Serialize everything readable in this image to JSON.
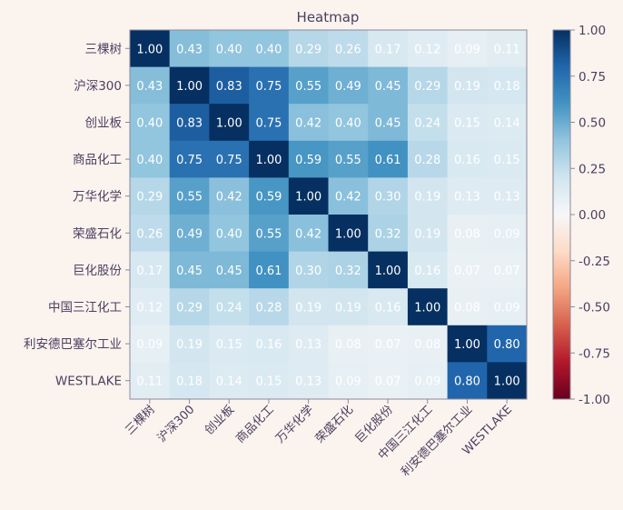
{
  "chart_data": {
    "type": "heatmap",
    "title": "Heatmap",
    "xlabel": "",
    "ylabel": "",
    "labels": [
      "三棵树",
      "沪深300",
      "创业板",
      "商品化工",
      "万华化学",
      "荣盛石化",
      "巨化股份",
      "中国三江化工",
      "利安德巴塞尔工业",
      "WESTLAKE"
    ],
    "values": [
      [
        1.0,
        0.43,
        0.4,
        0.4,
        0.29,
        0.26,
        0.17,
        0.12,
        0.09,
        0.11
      ],
      [
        0.43,
        1.0,
        0.83,
        0.75,
        0.55,
        0.49,
        0.45,
        0.29,
        0.19,
        0.18
      ],
      [
        0.4,
        0.83,
        1.0,
        0.75,
        0.42,
        0.4,
        0.45,
        0.24,
        0.15,
        0.14
      ],
      [
        0.4,
        0.75,
        0.75,
        1.0,
        0.59,
        0.55,
        0.61,
        0.28,
        0.16,
        0.15
      ],
      [
        0.29,
        0.55,
        0.42,
        0.59,
        1.0,
        0.42,
        0.3,
        0.19,
        0.13,
        0.13
      ],
      [
        0.26,
        0.49,
        0.4,
        0.55,
        0.42,
        1.0,
        0.32,
        0.19,
        0.08,
        0.09
      ],
      [
        0.17,
        0.45,
        0.45,
        0.61,
        0.3,
        0.32,
        1.0,
        0.16,
        0.07,
        0.07
      ],
      [
        0.12,
        0.29,
        0.24,
        0.28,
        0.19,
        0.19,
        0.16,
        1.0,
        0.08,
        0.09
      ],
      [
        0.09,
        0.19,
        0.15,
        0.16,
        0.13,
        0.08,
        0.07,
        0.08,
        1.0,
        0.8
      ],
      [
        0.11,
        0.18,
        0.14,
        0.15,
        0.13,
        0.09,
        0.07,
        0.09,
        0.8,
        1.0
      ]
    ],
    "colormap": "RdBu",
    "vmin": -1.0,
    "vmax": 1.0,
    "colorbar_ticks": [
      "1.00",
      "0.75",
      "0.50",
      "0.25",
      "0.00",
      "-0.25",
      "-0.50",
      "-0.75",
      "-1.00"
    ],
    "colorbar_tick_values": [
      1.0,
      0.75,
      0.5,
      0.25,
      0.0,
      -0.25,
      -0.5,
      -0.75,
      -1.0
    ],
    "value_format": "2 decimals",
    "x_tick_rotation_deg": 45,
    "grid": false,
    "legend": "colorbar-right"
  },
  "colors": {
    "background": "#fbf3ee",
    "text": "#4a4060",
    "axis": "#8a8a9a",
    "cell_text": "#ffffff"
  }
}
